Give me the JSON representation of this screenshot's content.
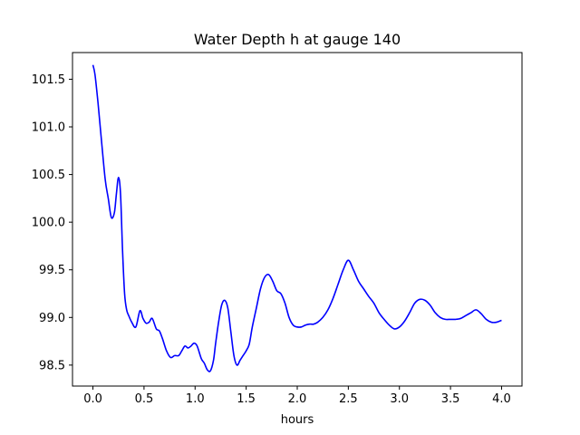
{
  "chart_data": {
    "type": "line",
    "title": "Water Depth h at gauge 140",
    "xlabel": "hours",
    "ylabel": "",
    "xlim": [
      -0.2,
      4.2
    ],
    "ylim": [
      98.28,
      101.78
    ],
    "grid": false,
    "xticks": [
      0.0,
      0.5,
      1.0,
      1.5,
      2.0,
      2.5,
      3.0,
      3.5,
      4.0
    ],
    "xtick_labels": [
      "0.0",
      "0.5",
      "1.0",
      "1.5",
      "2.0",
      "2.5",
      "3.0",
      "3.5",
      "4.0"
    ],
    "yticks": [
      98.5,
      99.0,
      99.5,
      100.0,
      100.5,
      101.0,
      101.5
    ],
    "ytick_labels": [
      "98.5",
      "99.0",
      "99.5",
      "100.0",
      "100.5",
      "101.0",
      "101.5"
    ],
    "series": [
      {
        "color": "#0000ff",
        "x": [
          0.0,
          0.02,
          0.05,
          0.08,
          0.12,
          0.15,
          0.18,
          0.21,
          0.23,
          0.25,
          0.27,
          0.29,
          0.31,
          0.33,
          0.35,
          0.38,
          0.42,
          0.46,
          0.49,
          0.52,
          0.55,
          0.58,
          0.62,
          0.65,
          0.68,
          0.72,
          0.76,
          0.8,
          0.84,
          0.87,
          0.9,
          0.93,
          0.96,
          0.99,
          1.02,
          1.06,
          1.09,
          1.12,
          1.15,
          1.18,
          1.2,
          1.23,
          1.26,
          1.29,
          1.32,
          1.35,
          1.38,
          1.41,
          1.44,
          1.47,
          1.5,
          1.53,
          1.56,
          1.6,
          1.64,
          1.68,
          1.72,
          1.76,
          1.8,
          1.84,
          1.88,
          1.92,
          1.96,
          2.0,
          2.04,
          2.08,
          2.12,
          2.16,
          2.2,
          2.25,
          2.3,
          2.35,
          2.4,
          2.45,
          2.5,
          2.55,
          2.6,
          2.65,
          2.7,
          2.75,
          2.8,
          2.85,
          2.9,
          2.95,
          3.0,
          3.05,
          3.1,
          3.15,
          3.2,
          3.25,
          3.3,
          3.35,
          3.4,
          3.45,
          3.5,
          3.55,
          3.6,
          3.65,
          3.7,
          3.75,
          3.8,
          3.85,
          3.9,
          3.95,
          4.0
        ],
        "y": [
          101.65,
          101.55,
          101.25,
          100.9,
          100.45,
          100.25,
          100.05,
          100.1,
          100.3,
          100.47,
          100.3,
          99.7,
          99.25,
          99.08,
          99.02,
          98.95,
          98.9,
          99.07,
          98.99,
          98.94,
          98.95,
          98.99,
          98.88,
          98.86,
          98.78,
          98.65,
          98.58,
          98.6,
          98.6,
          98.65,
          98.7,
          98.68,
          98.7,
          98.73,
          98.7,
          98.57,
          98.52,
          98.45,
          98.44,
          98.55,
          98.72,
          98.95,
          99.13,
          99.18,
          99.1,
          98.85,
          98.6,
          98.5,
          98.55,
          98.6,
          98.65,
          98.72,
          98.9,
          99.1,
          99.3,
          99.42,
          99.45,
          99.38,
          99.28,
          99.25,
          99.15,
          99.0,
          98.92,
          98.9,
          98.9,
          98.92,
          98.93,
          98.93,
          98.95,
          99.0,
          99.08,
          99.2,
          99.35,
          99.5,
          99.6,
          99.5,
          99.38,
          99.3,
          99.22,
          99.15,
          99.05,
          98.98,
          98.92,
          98.88,
          98.9,
          98.96,
          99.05,
          99.15,
          99.19,
          99.18,
          99.13,
          99.05,
          99.0,
          98.98,
          98.98,
          98.98,
          98.99,
          99.02,
          99.05,
          99.08,
          99.04,
          98.98,
          98.95,
          98.95,
          98.97
        ]
      }
    ]
  }
}
